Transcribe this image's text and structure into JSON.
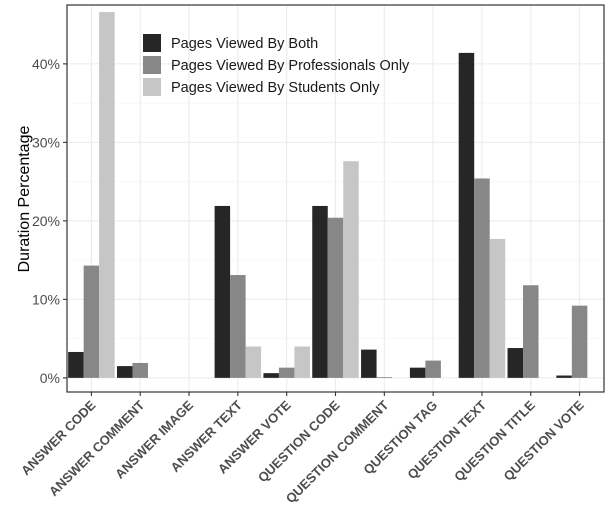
{
  "chart_data": {
    "type": "bar",
    "ylabel": "Duration Percentage",
    "xlabel": "",
    "ylim": [
      -1.8,
      47.5
    ],
    "yticks": [
      0,
      10,
      20,
      30,
      40
    ],
    "ytick_labels": [
      "0%",
      "10%",
      "20%",
      "30%",
      "40%"
    ],
    "grid": true,
    "legend_position": "top-left",
    "categories": [
      "ANSWER CODE",
      "ANSWER COMMENT",
      "ANSWER IMAGE",
      "ANSWER TEXT",
      "ANSWER VOTE",
      "QUESTION CODE",
      "QUESTION COMMENT",
      "QUESTION TAG",
      "QUESTION TEXT",
      "QUESTION TITLE",
      "QUESTION VOTE"
    ],
    "series": [
      {
        "name": "Pages Viewed By Both",
        "color": "#262626",
        "values": [
          3.3,
          1.5,
          0,
          21.9,
          0.6,
          21.9,
          3.6,
          1.3,
          41.4,
          3.8,
          0.3
        ]
      },
      {
        "name": "Pages Viewed By Professionals Only",
        "color": "#878787",
        "values": [
          14.3,
          1.9,
          0,
          13.1,
          1.3,
          20.4,
          0.1,
          2.2,
          25.4,
          11.8,
          9.2
        ]
      },
      {
        "name": "Pages Viewed By Students Only",
        "color": "#c6c6c6",
        "values": [
          46.6,
          0,
          0,
          4.0,
          4.0,
          27.6,
          0,
          0,
          17.7,
          0,
          0
        ]
      }
    ]
  }
}
